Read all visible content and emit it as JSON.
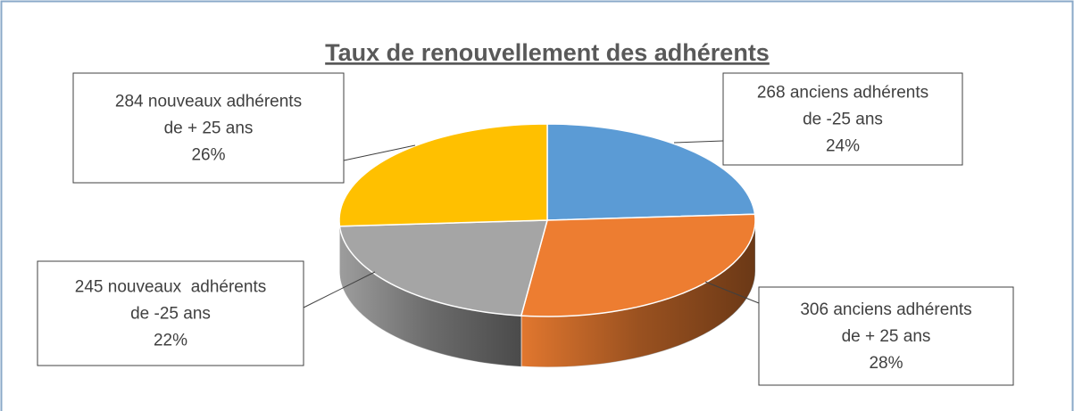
{
  "chart_data": {
    "type": "pie",
    "title": "Taux de renouvellement des adhérents",
    "categories": [
      [
        "anciens adhérents",
        "de -25 ans"
      ],
      [
        "anciens adhérents",
        "de + 25 ans"
      ],
      [
        "nouveaux  adhérents",
        "de -25 ans"
      ],
      [
        "nouveaux adhérents",
        "de + 25 ans"
      ]
    ],
    "counts": [
      268,
      306,
      245,
      284
    ],
    "values": [
      24,
      28,
      22,
      26
    ],
    "value_labels": [
      "24%",
      "28%",
      "22%",
      "26%"
    ],
    "colors": [
      "#5b9bd5",
      "#ed7d31",
      "#a5a5a5",
      "#ffc000"
    ]
  }
}
